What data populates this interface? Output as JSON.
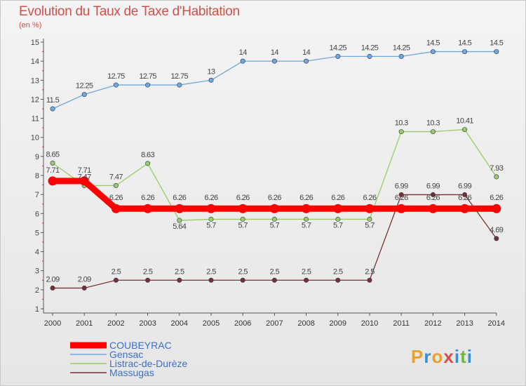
{
  "title": "Evolution du Taux de Taxe d'Habitation",
  "subtitle": "(en %)",
  "logo": {
    "letters": [
      "P",
      "r",
      "o",
      "x",
      "i",
      "t",
      "i"
    ],
    "colors": [
      "#e8a030",
      "#3b8ed0",
      "#e8a030",
      "#d0504a",
      "#3b8ed0",
      "#6cbb3c",
      "#3b8ed0"
    ]
  },
  "chart_data": {
    "type": "line",
    "title": "Evolution du Taux de Taxe d'Habitation",
    "ylabel": "(en %)",
    "xlabel": "",
    "ylim": [
      1,
      15
    ],
    "yticks": [
      1,
      2,
      3,
      4,
      5,
      6,
      7,
      8,
      9,
      10,
      11,
      12,
      13,
      14,
      15
    ],
    "x": [
      "2000",
      "2001",
      "2002",
      "2003",
      "2004",
      "2005",
      "2006",
      "2007",
      "2008",
      "2009",
      "2010",
      "2011",
      "2012",
      "2013",
      "2014"
    ],
    "grid": false,
    "legend": "bottom-left",
    "series": [
      {
        "name": "COUBEYRAC",
        "color": "#ff0000",
        "values": [
          7.71,
          7.71,
          6.26,
          6.26,
          6.26,
          6.26,
          6.26,
          6.26,
          6.26,
          6.26,
          6.26,
          6.26,
          6.26,
          6.26,
          6.26
        ],
        "labels": [
          "7.71",
          "7.71",
          "6.26",
          "6.26",
          "6.26",
          "6.26",
          "6.26",
          "6.26",
          "6.26",
          "6.26",
          "6.26",
          "6.26",
          "6.26",
          "6.26",
          "6.26"
        ]
      },
      {
        "name": "Gensac",
        "color": "#6fa8dc",
        "values": [
          11.5,
          12.25,
          12.75,
          12.75,
          12.75,
          13,
          14,
          14,
          14,
          14.25,
          14.25,
          14.25,
          14.5,
          14.5,
          14.5
        ],
        "labels": [
          "11.5",
          "12.25",
          "12.75",
          "12.75",
          "12.75",
          "13",
          "14",
          "14",
          "14",
          "14.25",
          "14.25",
          "14.25",
          "14.5",
          "14.5",
          "14.5"
        ]
      },
      {
        "name": "Listrac-de-Durèze",
        "color": "#99cc66",
        "values": [
          8.65,
          7.47,
          7.47,
          8.63,
          5.64,
          5.7,
          5.7,
          5.7,
          5.7,
          5.7,
          5.7,
          10.3,
          10.3,
          10.41,
          7.93
        ],
        "labels": [
          "8.65",
          "7.47",
          "7.47",
          "8.63",
          "5.64",
          "5.7",
          "5.7",
          "5.7",
          "5.7",
          "5.7",
          "5.7",
          "10.3",
          "10.3",
          "10.41",
          "7.93"
        ]
      },
      {
        "name": "Massugas",
        "color": "#7a3030",
        "values": [
          2.09,
          2.09,
          2.5,
          2.5,
          2.5,
          2.5,
          2.5,
          2.5,
          2.5,
          2.5,
          2.5,
          6.99,
          6.99,
          6.99,
          4.69
        ],
        "labels": [
          "2.09",
          "2.09",
          "2.5",
          "2.5",
          "2.5",
          "2.5",
          "2.5",
          "2.5",
          "2.5",
          "2.5",
          "2.5",
          "6.99",
          "6.99",
          "6.99",
          "4.69"
        ]
      }
    ]
  }
}
